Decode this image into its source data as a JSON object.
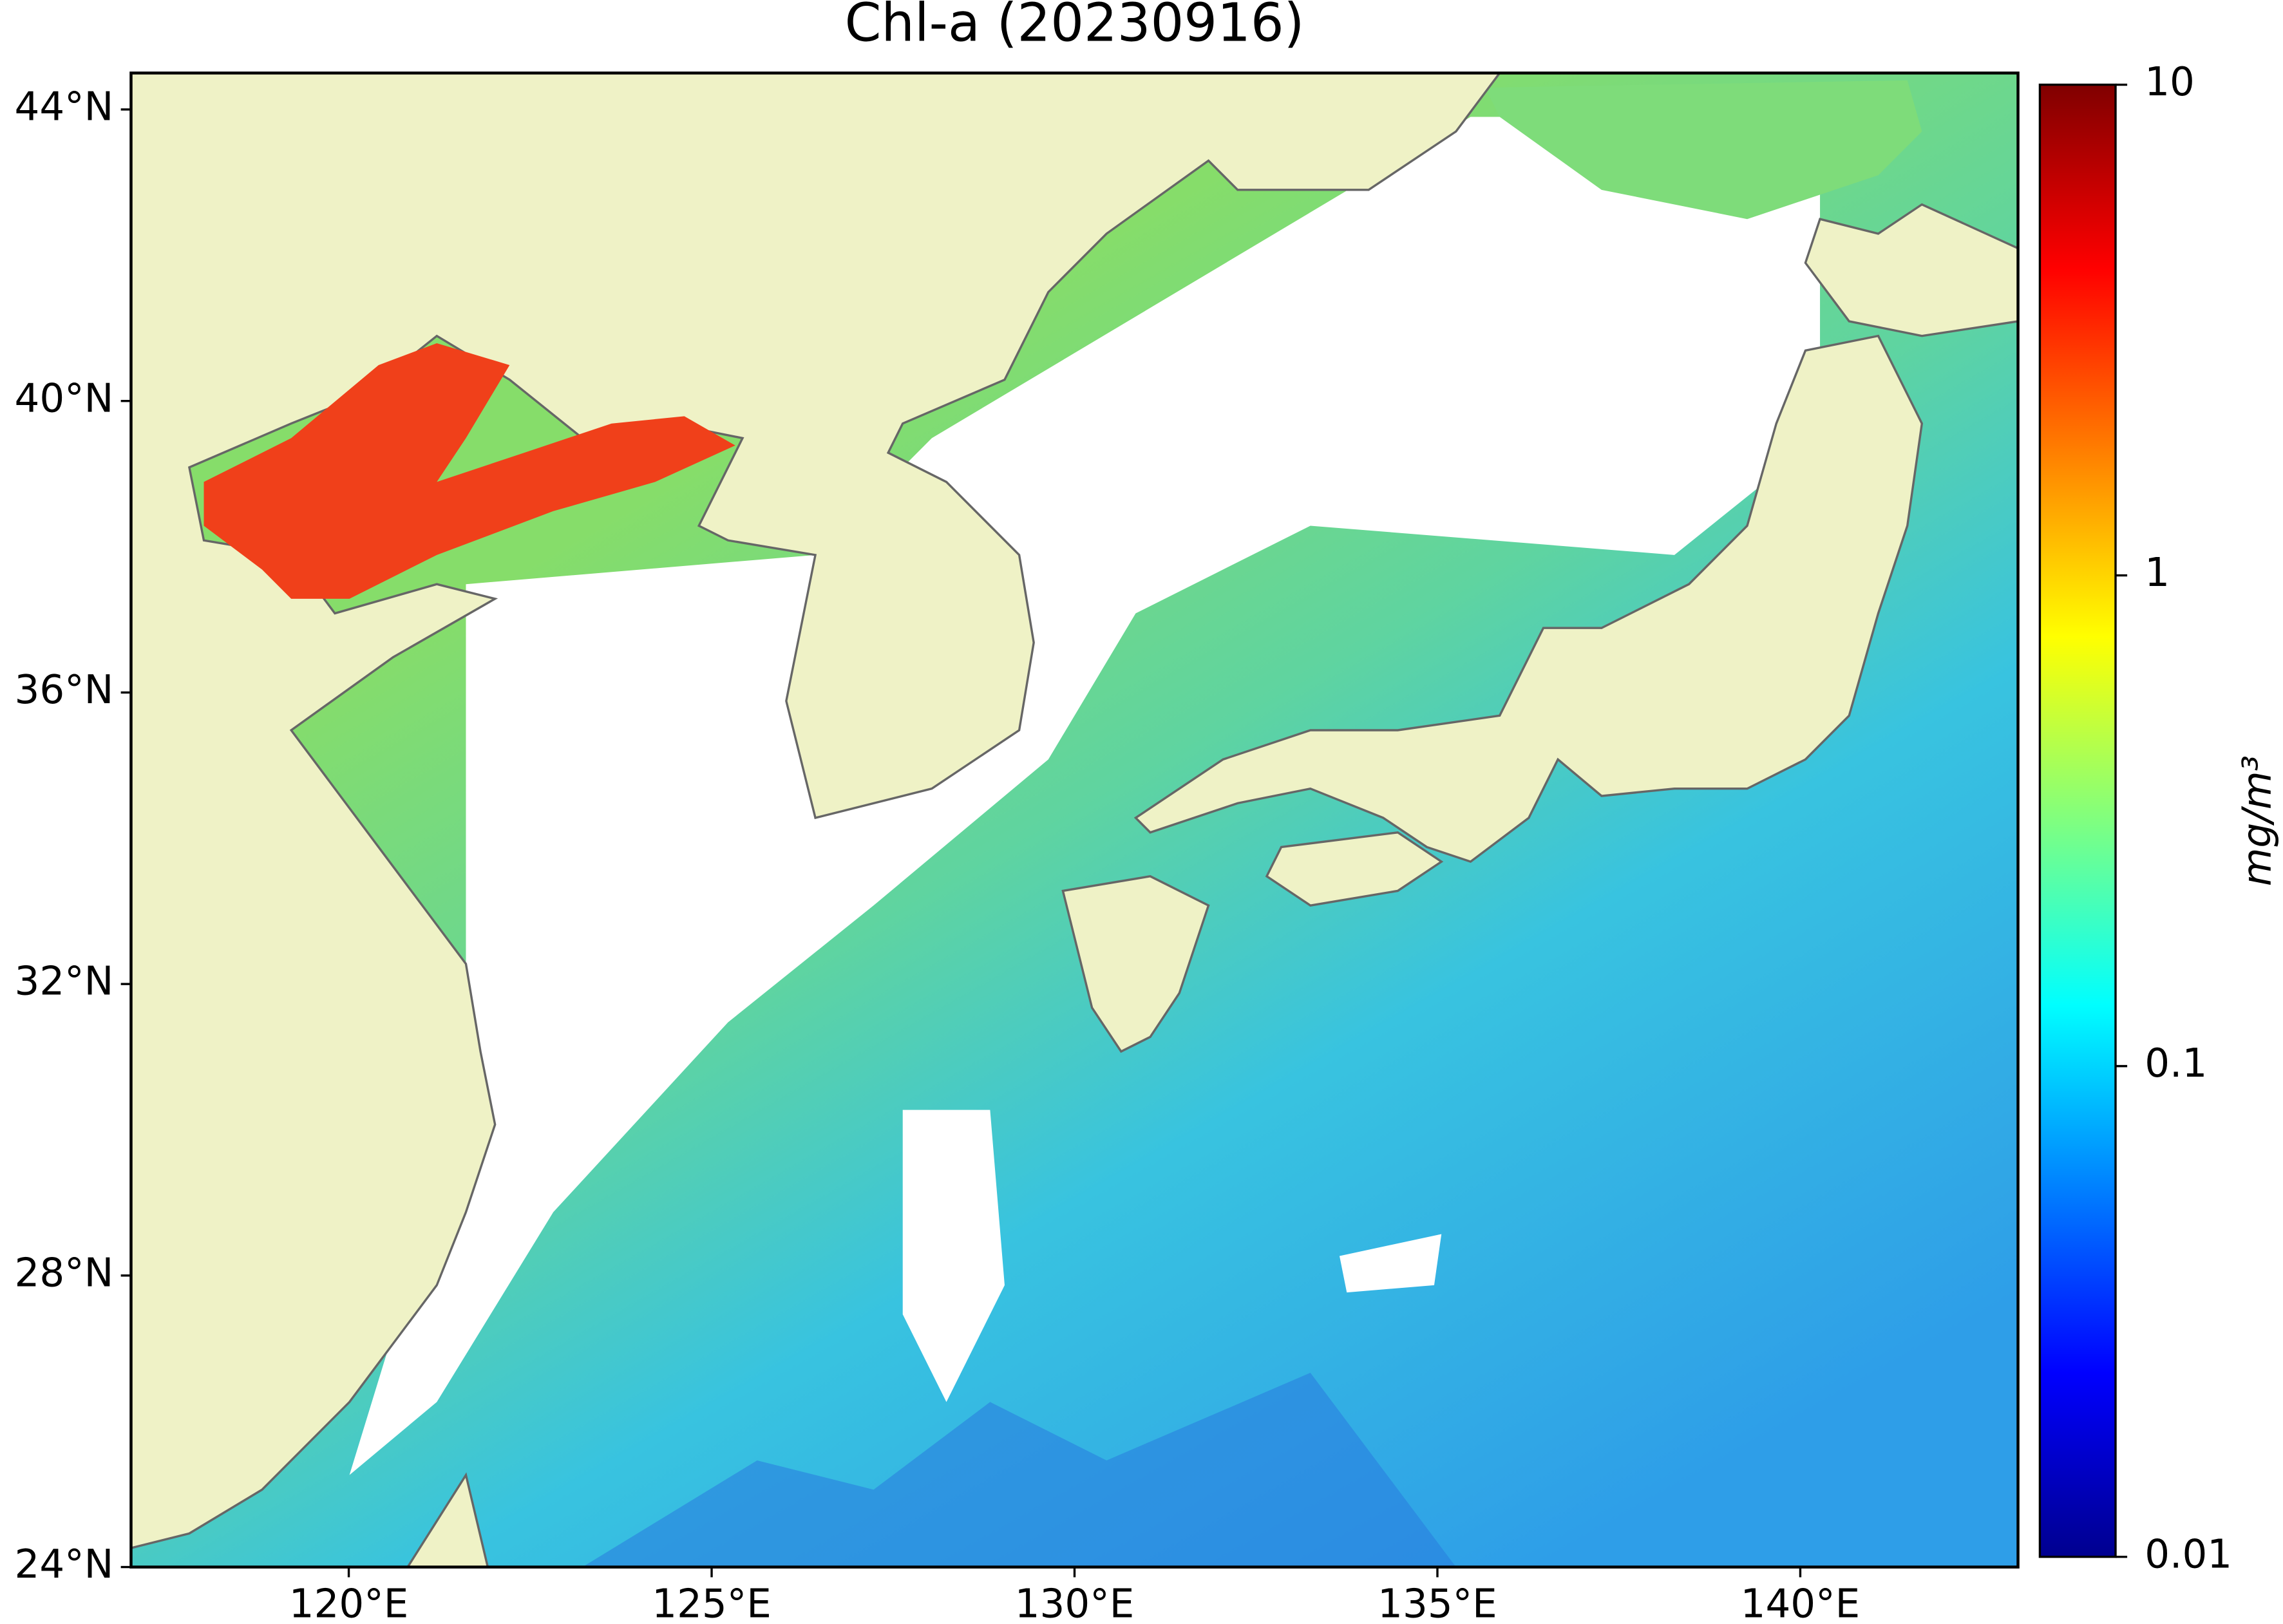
{
  "chart_data": {
    "type": "map",
    "title": "Chl-a (20230916)",
    "xlim": [
      117,
      143
    ],
    "ylim": [
      24,
      44.5
    ],
    "xticks": [
      {
        "value": 120,
        "label": "120°E"
      },
      {
        "value": 125,
        "label": "125°E"
      },
      {
        "value": 130,
        "label": "130°E"
      },
      {
        "value": 135,
        "label": "135°E"
      },
      {
        "value": 140,
        "label": "140°E"
      }
    ],
    "yticks": [
      {
        "value": 24,
        "label": "24°N"
      },
      {
        "value": 28,
        "label": "28°N"
      },
      {
        "value": 32,
        "label": "32°N"
      },
      {
        "value": 36,
        "label": "36°N"
      },
      {
        "value": 40,
        "label": "40°N"
      },
      {
        "value": 44,
        "label": "44°N"
      }
    ],
    "colorbar": {
      "label": "mg/m³",
      "scale": "log",
      "lim": [
        0.01,
        10
      ],
      "ticks": [
        0.01,
        0.1,
        1,
        10
      ]
    }
  }
}
